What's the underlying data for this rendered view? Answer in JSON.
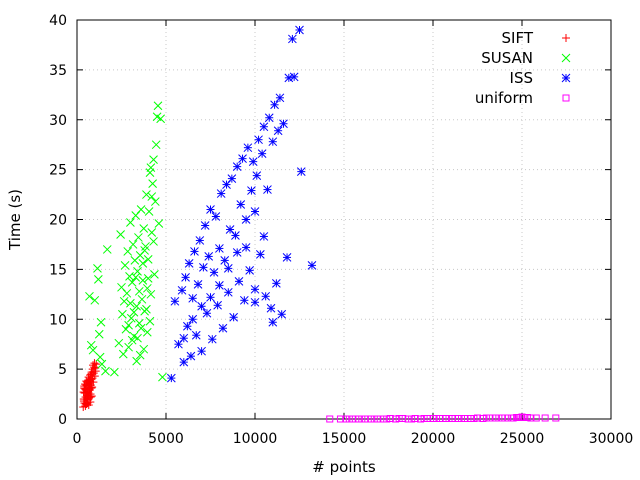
{
  "chart_data": {
    "type": "scatter",
    "xlabel": "# points",
    "ylabel": "Time (s)",
    "xlim": [
      0,
      30000
    ],
    "ylim": [
      0,
      40
    ],
    "xticks": [
      0,
      5000,
      10000,
      15000,
      20000,
      25000,
      30000
    ],
    "yticks": [
      0,
      5,
      10,
      15,
      20,
      25,
      30,
      35,
      40
    ],
    "grid": true,
    "legend_position": "top-right",
    "series": [
      {
        "name": "SIFT",
        "color": "#ff0000",
        "marker": "plus",
        "points": [
          [
            350,
            1.2
          ],
          [
            380,
            2.0
          ],
          [
            400,
            3.1
          ],
          [
            420,
            1.6
          ],
          [
            430,
            2.6
          ],
          [
            450,
            3.5
          ],
          [
            470,
            1.3
          ],
          [
            480,
            2.2
          ],
          [
            500,
            2.9
          ],
          [
            520,
            3.8
          ],
          [
            540,
            1.5
          ],
          [
            560,
            2.4
          ],
          [
            580,
            3.3
          ],
          [
            600,
            1.9
          ],
          [
            610,
            2.8
          ],
          [
            630,
            3.9
          ],
          [
            650,
            4.2
          ],
          [
            660,
            1.4
          ],
          [
            680,
            2.1
          ],
          [
            700,
            3.0
          ],
          [
            710,
            3.6
          ],
          [
            730,
            4.4
          ],
          [
            750,
            1.7
          ],
          [
            760,
            2.5
          ],
          [
            780,
            3.4
          ],
          [
            800,
            4.0
          ],
          [
            820,
            4.7
          ],
          [
            830,
            2.3
          ],
          [
            850,
            3.2
          ],
          [
            870,
            4.1
          ],
          [
            880,
            5.0
          ],
          [
            900,
            5.4
          ],
          [
            920,
            3.7
          ],
          [
            940,
            4.6
          ],
          [
            960,
            5.2
          ],
          [
            980,
            5.6
          ],
          [
            1000,
            4.3
          ],
          [
            1020,
            5.1
          ],
          [
            1050,
            4.8
          ],
          [
            1080,
            5.5
          ],
          [
            370,
            2.7
          ],
          [
            390,
            1.8
          ],
          [
            410,
            3.3
          ],
          [
            440,
            2.0
          ],
          [
            460,
            3.0
          ],
          [
            490,
            1.5
          ],
          [
            510,
            2.6
          ],
          [
            530,
            3.4
          ],
          [
            550,
            2.0
          ],
          [
            570,
            3.7
          ],
          [
            590,
            1.6
          ],
          [
            620,
            2.7
          ],
          [
            640,
            3.5
          ],
          [
            670,
            2.3
          ],
          [
            690,
            3.9
          ],
          [
            720,
            2.9
          ],
          [
            740,
            3.8
          ],
          [
            770,
            2.2
          ],
          [
            790,
            4.5
          ],
          [
            810,
            3.1
          ]
        ]
      },
      {
        "name": "SUSAN",
        "color": "#00ff00",
        "marker": "cross",
        "points": [
          [
            700,
            12.3
          ],
          [
            800,
            7.4
          ],
          [
            900,
            6.9
          ],
          [
            1000,
            11.9
          ],
          [
            1150,
            15.1
          ],
          [
            1200,
            14.0
          ],
          [
            1250,
            8.5
          ],
          [
            1300,
            6.2
          ],
          [
            1350,
            9.7
          ],
          [
            1400,
            5.5
          ],
          [
            1600,
            4.8
          ],
          [
            1700,
            17.0
          ],
          [
            2100,
            4.7
          ],
          [
            2350,
            7.6
          ],
          [
            2450,
            18.5
          ],
          [
            2500,
            13.2
          ],
          [
            2550,
            10.5
          ],
          [
            2600,
            6.5
          ],
          [
            2650,
            11.8
          ],
          [
            2700,
            15.4
          ],
          [
            2750,
            9.0
          ],
          [
            2800,
            12.6
          ],
          [
            2850,
            16.8
          ],
          [
            2900,
            7.2
          ],
          [
            2950,
            14.3
          ],
          [
            3000,
            19.7
          ],
          [
            3050,
            10.1
          ],
          [
            3100,
            13.7
          ],
          [
            3150,
            17.5
          ],
          [
            3200,
            8.3
          ],
          [
            3250,
            15.9
          ],
          [
            3300,
            20.4
          ],
          [
            3350,
            11.3
          ],
          [
            3400,
            14.8
          ],
          [
            3450,
            18.2
          ],
          [
            3500,
            9.6
          ],
          [
            3550,
            16.4
          ],
          [
            3600,
            21.0
          ],
          [
            3650,
            12.0
          ],
          [
            3700,
            15.6
          ],
          [
            3750,
            19.1
          ],
          [
            3800,
            10.8
          ],
          [
            3850,
            17.3
          ],
          [
            3900,
            22.5
          ],
          [
            3950,
            13.1
          ],
          [
            4000,
            16.0
          ],
          [
            4050,
            20.8
          ],
          [
            4100,
            24.7
          ],
          [
            4150,
            12.5
          ],
          [
            4200,
            18.7
          ],
          [
            4250,
            23.6
          ],
          [
            4300,
            26.0
          ],
          [
            4350,
            14.5
          ],
          [
            4400,
            21.8
          ],
          [
            4450,
            27.5
          ],
          [
            4500,
            30.3
          ],
          [
            4550,
            31.4
          ],
          [
            4600,
            19.6
          ],
          [
            4700,
            30.1
          ],
          [
            4800,
            4.2
          ],
          [
            2900,
            9.4
          ],
          [
            3000,
            11.6
          ],
          [
            3100,
            7.9
          ],
          [
            3200,
            10.7
          ],
          [
            3300,
            14.2
          ],
          [
            3400,
            8.1
          ],
          [
            3500,
            12.8
          ],
          [
            3600,
            9.1
          ],
          [
            3700,
            13.9
          ],
          [
            3800,
            16.9
          ],
          [
            3900,
            11.0
          ],
          [
            4000,
            14.1
          ],
          [
            4100,
            9.8
          ],
          [
            4200,
            22.3
          ],
          [
            4300,
            17.8
          ],
          [
            3350,
            5.8
          ],
          [
            3550,
            6.4
          ],
          [
            3750,
            7.0
          ],
          [
            3950,
            8.7
          ],
          [
            4150,
            25.2
          ]
        ]
      },
      {
        "name": "ISS",
        "color": "#0000ff",
        "marker": "star",
        "points": [
          [
            5300,
            4.1
          ],
          [
            5500,
            11.8
          ],
          [
            5700,
            7.5
          ],
          [
            5900,
            12.9
          ],
          [
            6000,
            5.7
          ],
          [
            6100,
            14.2
          ],
          [
            6200,
            9.3
          ],
          [
            6300,
            15.6
          ],
          [
            6400,
            6.3
          ],
          [
            6500,
            12.1
          ],
          [
            6600,
            16.8
          ],
          [
            6700,
            8.4
          ],
          [
            6800,
            13.5
          ],
          [
            6900,
            17.9
          ],
          [
            7000,
            6.8
          ],
          [
            7100,
            15.2
          ],
          [
            7200,
            19.4
          ],
          [
            7300,
            10.6
          ],
          [
            7400,
            16.3
          ],
          [
            7500,
            21.0
          ],
          [
            7600,
            8.0
          ],
          [
            7700,
            14.7
          ],
          [
            7800,
            20.3
          ],
          [
            7900,
            11.4
          ],
          [
            8000,
            17.1
          ],
          [
            8100,
            22.6
          ],
          [
            8200,
            9.1
          ],
          [
            8300,
            15.9
          ],
          [
            8400,
            23.5
          ],
          [
            8500,
            12.7
          ],
          [
            8600,
            19.0
          ],
          [
            8700,
            24.1
          ],
          [
            8800,
            10.2
          ],
          [
            8900,
            18.4
          ],
          [
            9000,
            25.3
          ],
          [
            9100,
            13.8
          ],
          [
            9200,
            21.5
          ],
          [
            9300,
            26.1
          ],
          [
            9400,
            11.9
          ],
          [
            9500,
            20.0
          ],
          [
            9600,
            27.2
          ],
          [
            9700,
            14.9
          ],
          [
            9800,
            22.9
          ],
          [
            9900,
            25.8
          ],
          [
            10000,
            13.0
          ],
          [
            10100,
            24.4
          ],
          [
            10200,
            28.0
          ],
          [
            10300,
            16.5
          ],
          [
            10400,
            26.6
          ],
          [
            10500,
            29.3
          ],
          [
            10600,
            12.3
          ],
          [
            10700,
            23.0
          ],
          [
            10800,
            30.2
          ],
          [
            10900,
            11.1
          ],
          [
            11000,
            27.8
          ],
          [
            11100,
            31.5
          ],
          [
            11200,
            13.6
          ],
          [
            11300,
            28.9
          ],
          [
            11400,
            32.2
          ],
          [
            11600,
            29.6
          ],
          [
            11800,
            16.2
          ],
          [
            11900,
            34.2
          ],
          [
            12100,
            38.1
          ],
          [
            12200,
            34.3
          ],
          [
            12500,
            39.0
          ],
          [
            12600,
            24.8
          ],
          [
            13200,
            15.4
          ],
          [
            10000,
            20.8
          ],
          [
            9500,
            17.2
          ],
          [
            8500,
            15.1
          ],
          [
            7500,
            12.2
          ],
          [
            6500,
            10.0
          ],
          [
            6000,
            8.1
          ],
          [
            7000,
            11.3
          ],
          [
            8000,
            13.4
          ],
          [
            9000,
            16.7
          ],
          [
            10500,
            18.3
          ],
          [
            11500,
            10.5
          ],
          [
            11000,
            9.7
          ],
          [
            10000,
            11.7
          ]
        ]
      },
      {
        "name": "uniform",
        "color": "#ff00ff",
        "marker": "square",
        "points": [
          [
            14200,
            0.0
          ],
          [
            14800,
            0.0
          ],
          [
            15100,
            0.0
          ],
          [
            15500,
            0.0
          ],
          [
            15800,
            0.0
          ],
          [
            16200,
            0.0
          ],
          [
            16500,
            0.0
          ],
          [
            16900,
            0.0
          ],
          [
            17200,
            0.0
          ],
          [
            17600,
            0.05
          ],
          [
            17900,
            0.0
          ],
          [
            18300,
            0.05
          ],
          [
            18600,
            0.0
          ],
          [
            19000,
            0.05
          ],
          [
            19300,
            0.0
          ],
          [
            19700,
            0.05
          ],
          [
            20000,
            0.05
          ],
          [
            20400,
            0.05
          ],
          [
            20700,
            0.05
          ],
          [
            21100,
            0.05
          ],
          [
            21400,
            0.05
          ],
          [
            21800,
            0.05
          ],
          [
            22100,
            0.05
          ],
          [
            22500,
            0.1
          ],
          [
            22800,
            0.05
          ],
          [
            23200,
            0.1
          ],
          [
            23500,
            0.1
          ],
          [
            23900,
            0.1
          ],
          [
            24200,
            0.1
          ],
          [
            24500,
            0.1
          ],
          [
            24700,
            0.15
          ],
          [
            24900,
            0.15
          ],
          [
            25000,
            0.2
          ],
          [
            25100,
            0.15
          ],
          [
            25300,
            0.15
          ],
          [
            25500,
            0.1
          ],
          [
            25800,
            0.1
          ],
          [
            26300,
            0.1
          ],
          [
            26900,
            0.1
          ],
          [
            15300,
            0.0
          ],
          [
            16000,
            0.0
          ],
          [
            16700,
            0.0
          ],
          [
            17400,
            0.0
          ],
          [
            18100,
            0.05
          ],
          [
            18800,
            0.0
          ],
          [
            19500,
            0.05
          ],
          [
            20200,
            0.05
          ],
          [
            20900,
            0.05
          ],
          [
            21600,
            0.05
          ],
          [
            22300,
            0.05
          ],
          [
            23000,
            0.1
          ],
          [
            23700,
            0.1
          ],
          [
            24400,
            0.1
          ],
          [
            24800,
            0.15
          ]
        ]
      }
    ]
  }
}
